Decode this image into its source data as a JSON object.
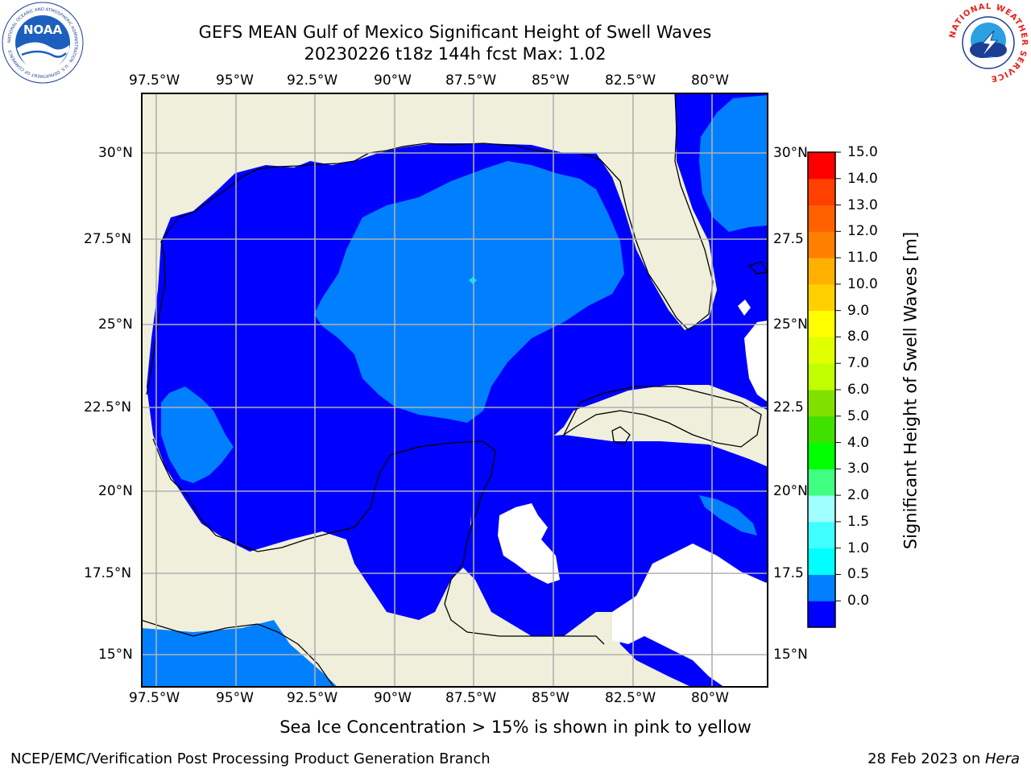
{
  "header": {
    "title_line1": "GEFS MEAN Gulf of Mexico Significant Height of Swell Waves",
    "title_line2": "20230226 t18z 144h fcst   Max: 1.02"
  },
  "logos": {
    "noara_left": "NOAA",
    "noaa_ring_text": "NATIONAL OCEANIC AND ATMOSPHERIC ADMINISTRATION · U.S. DEPARTMENT OF COMMERCE",
    "nws_ring_text": "NATIONAL WEATHER SERVICE"
  },
  "map": {
    "lon_labels": [
      "97.5°W",
      "95°W",
      "92.5°W",
      "90°W",
      "87.5°W",
      "85°W",
      "82.5°W",
      "80°W"
    ],
    "lat_labels_left": [
      "30°N",
      "27.5°N",
      "25°N",
      "22.5°N",
      "20°N",
      "17.5°N",
      "15°N"
    ],
    "lat_labels_right": [
      "30°N",
      "27.5",
      "25°N",
      "22.5",
      "20°N",
      "17.5",
      "15°N"
    ],
    "colors": {
      "land": "#efefdc",
      "swell_0_05": "#0000ff",
      "swell_05_10": "#0080ff",
      "no_data": "#ffffff",
      "grid": "#b0b0b0"
    }
  },
  "colorbar": {
    "label": "Significant Height of Swell Waves [m]",
    "tick_labels": [
      "15.0",
      "14.0",
      "13.0",
      "12.0",
      "11.0",
      "10.0",
      "9.0",
      "8.0",
      "7.0",
      "6.0",
      "5.0",
      "4.0",
      "3.0",
      "2.0",
      "1.5",
      "1.0",
      "0.5",
      "0.0"
    ],
    "colors": [
      "#0000ff",
      "#0080ff",
      "#00ffff",
      "#40ffff",
      "#a0ffff",
      "#40ff80",
      "#00ff00",
      "#40e000",
      "#80e000",
      "#c0ff00",
      "#e0ff00",
      "#ffff00",
      "#ffd000",
      "#ffb000",
      "#ff8000",
      "#ff6000",
      "#ff4000",
      "#ff0000"
    ]
  },
  "footer": {
    "ice_note": "Sea Ice Concentration > 15% is shown in pink to yellow",
    "branch": "NCEP/EMC/Verification Post Processing Product Generation Branch",
    "date": "28 Feb 2023 on ",
    "machine": "Hera"
  }
}
